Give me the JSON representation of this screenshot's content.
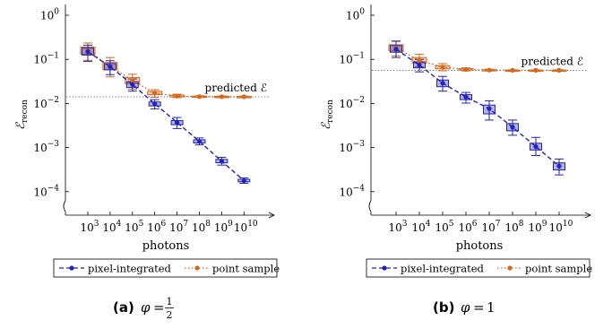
{
  "chart_data": [
    {
      "type": "box",
      "panel_label": "(a)",
      "caption_tex": "φ = ½",
      "caption_var": "φ",
      "caption_eq": "=",
      "caption_num": "1",
      "caption_den": "2",
      "xlabel": "photons",
      "ylabel_main": "ℰ",
      "ylabel_sub": "recon",
      "x_ticks": [
        {
          "base": "10",
          "exp": "3"
        },
        {
          "base": "10",
          "exp": "4"
        },
        {
          "base": "10",
          "exp": "5"
        },
        {
          "base": "10",
          "exp": "6"
        },
        {
          "base": "10",
          "exp": "7"
        },
        {
          "base": "10",
          "exp": "8"
        },
        {
          "base": "10",
          "exp": "9"
        },
        {
          "base": "10",
          "exp": "10"
        }
      ],
      "y_ticks": [
        {
          "base": "10",
          "exp": "0"
        },
        {
          "base": "10",
          "exp": "−1"
        },
        {
          "base": "10",
          "exp": "−2"
        },
        {
          "base": "10",
          "exp": "−3"
        },
        {
          "base": "10",
          "exp": "−4"
        }
      ],
      "y_scale": "log",
      "x_scale": "log",
      "ylim": [
        3.16e-05,
        1
      ],
      "predicted_label": "predicted ℰ",
      "predicted_value": 0.0142,
      "legend_position": "bottom",
      "series": [
        {
          "name": "pixel-integrated",
          "color": "#2323b4",
          "x": [
            1000,
            10000,
            100000,
            1000000,
            10000000,
            100000000,
            1000000000,
            10000000000
          ],
          "median": [
            0.15,
            0.068,
            0.027,
            0.0098,
            0.0037,
            0.00138,
            0.00049,
            0.000178
          ],
          "q1": [
            0.125,
            0.058,
            0.023,
            0.0088,
            0.0033,
            0.00127,
            0.00045,
            0.000167
          ],
          "q3": [
            0.18,
            0.08,
            0.031,
            0.0108,
            0.0041,
            0.0015,
            0.00054,
            0.00019
          ],
          "min": [
            0.09,
            0.045,
            0.019,
            0.0075,
            0.0027,
            0.00115,
            0.0004,
            0.000155
          ],
          "max": [
            0.21,
            0.093,
            0.036,
            0.0122,
            0.0048,
            0.00165,
            0.0006,
            0.000205
          ]
        },
        {
          "name": "point sample",
          "color": "#d2691e",
          "x": [
            1000,
            10000,
            100000,
            1000000,
            10000000,
            100000000,
            1000000000,
            10000000000
          ],
          "median": [
            0.155,
            0.07,
            0.033,
            0.0172,
            0.0147,
            0.0143,
            0.0142,
            0.0142
          ],
          "q1": [
            0.13,
            0.058,
            0.028,
            0.0158,
            0.0141,
            0.014,
            0.014,
            0.014
          ],
          "q3": [
            0.19,
            0.085,
            0.039,
            0.0188,
            0.0155,
            0.0147,
            0.0145,
            0.0144
          ],
          "min": [
            0.095,
            0.04,
            0.021,
            0.0138,
            0.0136,
            0.0137,
            0.0138,
            0.0138
          ],
          "max": [
            0.235,
            0.11,
            0.046,
            0.0205,
            0.0162,
            0.015,
            0.0148,
            0.0147
          ]
        }
      ]
    },
    {
      "type": "box",
      "panel_label": "(b)",
      "caption_tex": "φ = 1",
      "caption_var": "φ",
      "caption_eq": "=",
      "caption_num": "1",
      "caption_den": "",
      "xlabel": "photons",
      "ylabel_main": "ℰ",
      "ylabel_sub": "recon",
      "x_ticks": [
        {
          "base": "10",
          "exp": "3"
        },
        {
          "base": "10",
          "exp": "4"
        },
        {
          "base": "10",
          "exp": "5"
        },
        {
          "base": "10",
          "exp": "6"
        },
        {
          "base": "10",
          "exp": "7"
        },
        {
          "base": "10",
          "exp": "8"
        },
        {
          "base": "10",
          "exp": "9"
        },
        {
          "base": "10",
          "exp": "10"
        }
      ],
      "y_ticks": [
        {
          "base": "10",
          "exp": "0"
        },
        {
          "base": "10",
          "exp": "−1"
        },
        {
          "base": "10",
          "exp": "−2"
        },
        {
          "base": "10",
          "exp": "−3"
        },
        {
          "base": "10",
          "exp": "−4"
        }
      ],
      "y_scale": "log",
      "x_scale": "log",
      "ylim": [
        3.16e-05,
        1
      ],
      "predicted_label": "predicted ℰ",
      "predicted_value": 0.056,
      "legend_position": "bottom",
      "series": [
        {
          "name": "pixel-integrated",
          "color": "#2323b4",
          "x": [
            1000,
            10000,
            100000,
            1000000,
            10000000,
            100000000,
            1000000000,
            10000000000
          ],
          "median": [
            0.17,
            0.074,
            0.029,
            0.014,
            0.0076,
            0.0029,
            0.00105,
            0.00038
          ],
          "q1": [
            0.145,
            0.064,
            0.024,
            0.0122,
            0.0058,
            0.0024,
            0.00088,
            0.00031
          ],
          "q3": [
            0.205,
            0.087,
            0.034,
            0.0158,
            0.0092,
            0.0035,
            0.00125,
            0.00045
          ],
          "min": [
            0.11,
            0.052,
            0.019,
            0.0102,
            0.0042,
            0.0019,
            0.00066,
            0.00024
          ],
          "max": [
            0.26,
            0.1,
            0.041,
            0.0178,
            0.0115,
            0.0042,
            0.0017,
            0.00055
          ]
        },
        {
          "name": "point sample",
          "color": "#d2691e",
          "x": [
            1000,
            10000,
            100000,
            1000000,
            10000000,
            100000000,
            1000000000,
            10000000000
          ],
          "median": [
            0.18,
            0.095,
            0.066,
            0.059,
            0.057,
            0.0565,
            0.0565,
            0.0565
          ],
          "q1": [
            0.155,
            0.083,
            0.061,
            0.057,
            0.0558,
            0.0558,
            0.0558,
            0.0558
          ],
          "q3": [
            0.215,
            0.11,
            0.072,
            0.0615,
            0.0585,
            0.0572,
            0.0572,
            0.0572
          ],
          "min": [
            0.12,
            0.068,
            0.055,
            0.0545,
            0.0545,
            0.0548,
            0.0548,
            0.0548
          ],
          "max": [
            0.255,
            0.13,
            0.08,
            0.064,
            0.06,
            0.058,
            0.058,
            0.058
          ]
        }
      ]
    }
  ]
}
